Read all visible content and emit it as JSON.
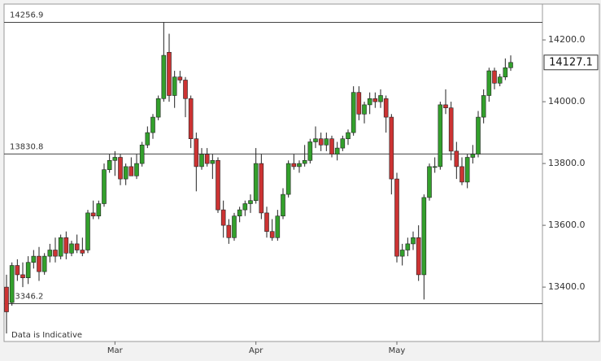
{
  "chart_data": {
    "type": "candlestick",
    "categories": [
      null,
      null,
      null,
      null,
      null,
      null,
      null,
      null,
      null,
      null,
      null,
      null,
      null,
      null,
      null,
      null,
      null,
      null,
      null,
      null,
      "Mar",
      null,
      null,
      null,
      null,
      null,
      null,
      null,
      null,
      null,
      null,
      null,
      null,
      null,
      null,
      null,
      null,
      null,
      null,
      null,
      null,
      null,
      null,
      null,
      null,
      null,
      "Apr",
      null,
      null,
      null,
      null,
      null,
      null,
      null,
      null,
      null,
      null,
      null,
      null,
      null,
      null,
      null,
      null,
      null,
      null,
      null,
      null,
      null,
      null,
      null,
      null,
      null,
      "May",
      null,
      null,
      null,
      null,
      null,
      null,
      null,
      null,
      null,
      null,
      null,
      null,
      null,
      null,
      null,
      null,
      null,
      null,
      null,
      null,
      null
    ],
    "open": [
      13400,
      13350,
      13470,
      13440,
      13430,
      13480,
      13500,
      13450,
      13500,
      13520,
      13500,
      13560,
      13510,
      13540,
      13520,
      13520,
      13640,
      13630,
      13670,
      13780,
      13810,
      13820,
      13750,
      13790,
      13760,
      13800,
      13860,
      13900,
      13950,
      14010,
      14160,
      14020,
      14080,
      14070,
      14010,
      13880,
      13790,
      13830,
      13800,
      13810,
      13650,
      13600,
      13560,
      13630,
      13650,
      13670,
      13680,
      13800,
      13640,
      13580,
      13560,
      13630,
      13700,
      13800,
      13790,
      13800,
      13810,
      13870,
      13880,
      13860,
      13880,
      13830,
      13850,
      13880,
      13900,
      14030,
      13960,
      13990,
      14010,
      14000,
      14010,
      13950,
      13750,
      13500,
      13520,
      13540,
      13560,
      13440,
      13690,
      13790,
      13790,
      13990,
      13980,
      13840,
      13790,
      13740,
      13820,
      13830,
      13950,
      14020,
      14100,
      14060,
      14080,
      14110
    ],
    "high": [
      13440,
      13480,
      13490,
      13480,
      13500,
      13520,
      13530,
      13510,
      13540,
      13560,
      13570,
      13580,
      13550,
      13570,
      13560,
      13650,
      13680,
      13680,
      13800,
      13830,
      13840,
      13830,
      13800,
      13820,
      13830,
      13870,
      13920,
      13960,
      14020,
      14257,
      14220,
      14100,
      14100,
      14080,
      14020,
      13900,
      13850,
      13850,
      13830,
      13820,
      13680,
      13620,
      13640,
      13660,
      13680,
      13700,
      13850,
      13830,
      13660,
      13620,
      13650,
      13720,
      13810,
      13830,
      13810,
      13860,
      13880,
      13920,
      13900,
      13900,
      13890,
      13870,
      13890,
      13910,
      14050,
      14050,
      14000,
      14030,
      14030,
      14040,
      14020,
      13960,
      13770,
      13540,
      13560,
      13580,
      13600,
      13700,
      13800,
      13820,
      14000,
      14040,
      14000,
      13870,
      13820,
      13830,
      13860,
      13970,
      14040,
      14110,
      14110,
      14090,
      14140,
      14150
    ],
    "low": [
      13250,
      13340,
      13420,
      13400,
      13410,
      13460,
      13420,
      13440,
      13480,
      13480,
      13490,
      13490,
      13500,
      13510,
      13500,
      13510,
      13620,
      13620,
      13660,
      13770,
      13760,
      13730,
      13730,
      13760,
      13750,
      13790,
      13850,
      13880,
      13940,
      14000,
      14000,
      13980,
      14060,
      13950,
      13850,
      13710,
      13780,
      13790,
      13750,
      13640,
      13560,
      13540,
      13550,
      13610,
      13630,
      13640,
      13670,
      13620,
      13560,
      13550,
      13550,
      13620,
      13690,
      13780,
      13770,
      13790,
      13800,
      13850,
      13840,
      13840,
      13820,
      13810,
      13840,
      13860,
      13890,
      13940,
      13930,
      13960,
      13980,
      13980,
      13900,
      13700,
      13480,
      13470,
      13500,
      13520,
      13420,
      13360,
      13680,
      13770,
      13780,
      13960,
      13810,
      13750,
      13730,
      13720,
      13800,
      13820,
      13930,
      14000,
      14040,
      14050,
      14070,
      14100
    ],
    "close": [
      13320,
      13470,
      13440,
      13430,
      13480,
      13500,
      13450,
      13500,
      13520,
      13500,
      13560,
      13510,
      13540,
      13520,
      13510,
      13640,
      13630,
      13670,
      13780,
      13810,
      13820,
      13750,
      13790,
      13760,
      13800,
      13860,
      13900,
      13950,
      14010,
      14150,
      14020,
      14080,
      14070,
      14010,
      13880,
      13790,
      13830,
      13800,
      13810,
      13650,
      13600,
      13560,
      13630,
      13650,
      13670,
      13680,
      13800,
      13640,
      13580,
      13560,
      13630,
      13700,
      13800,
      13790,
      13800,
      13810,
      13870,
      13880,
      13860,
      13880,
      13830,
      13850,
      13880,
      13900,
      14030,
      13960,
      13990,
      14010,
      14000,
      14020,
      13950,
      13750,
      13500,
      13520,
      13540,
      13560,
      13440,
      13690,
      13790,
      13790,
      13990,
      13980,
      13840,
      13790,
      13740,
      13820,
      13830,
      13950,
      14020,
      14100,
      14060,
      14080,
      14110,
      14127.1
    ],
    "up_color": "#33a02c",
    "down_color": "#cc3333",
    "ylim": [
      13224,
      14316
    ],
    "yticks": [
      {
        "value": 13400,
        "label": "13400.0"
      },
      {
        "value": 13600,
        "label": "13600.0"
      },
      {
        "value": 13800,
        "label": "13800.0"
      },
      {
        "value": 14000,
        "label": "14000.0"
      },
      {
        "value": 14200,
        "label": "14200.0"
      }
    ],
    "reference_lines": [
      14256.9,
      13830.8,
      13346.2
    ],
    "last_price": 14127.1,
    "annotation": "Data is Indicative"
  }
}
